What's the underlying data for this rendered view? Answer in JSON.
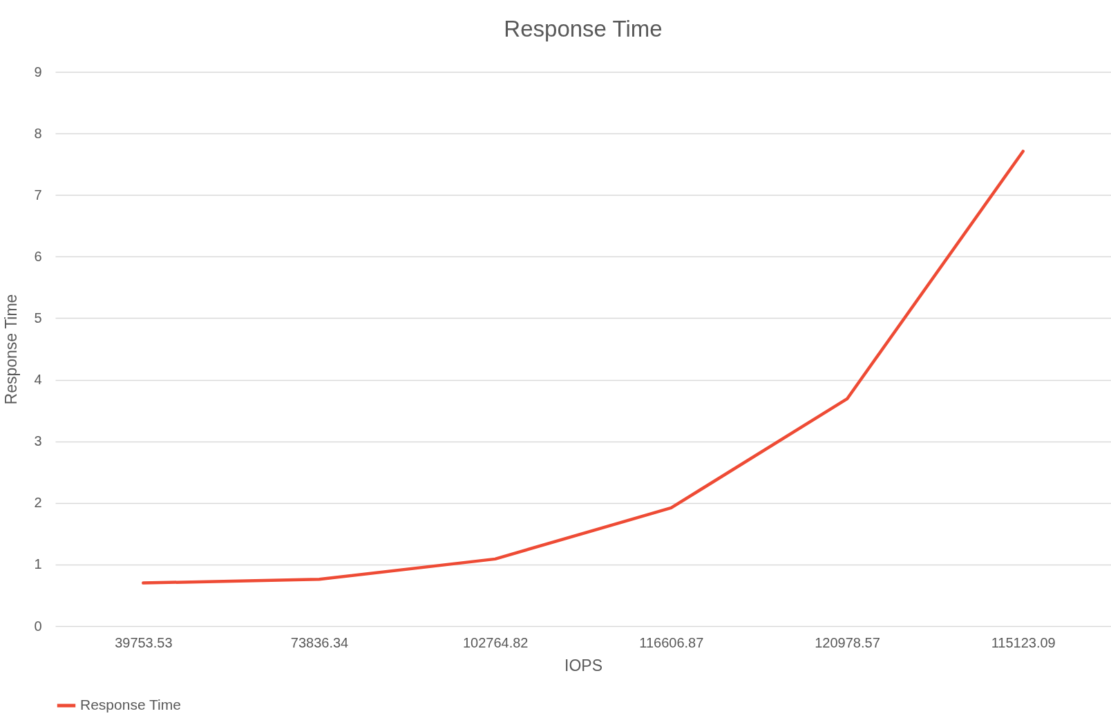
{
  "chart_data": {
    "type": "line",
    "title": "Response Time",
    "xlabel": "IOPS",
    "ylabel": "Response Time",
    "categories": [
      "39753.53",
      "73836.34",
      "102764.82",
      "116606.87",
      "120978.57",
      "115123.09"
    ],
    "series": [
      {
        "name": "Response Time",
        "color": "#ee4b35",
        "values": [
          0.7,
          0.76,
          1.09,
          1.92,
          3.69,
          7.71
        ]
      }
    ],
    "ylim": [
      0,
      9
    ],
    "yticks": [
      0,
      1,
      2,
      3,
      4,
      5,
      6,
      7,
      8,
      9
    ],
    "grid": "y",
    "legend": "bottom",
    "marker": "none",
    "line_style": "solid"
  }
}
